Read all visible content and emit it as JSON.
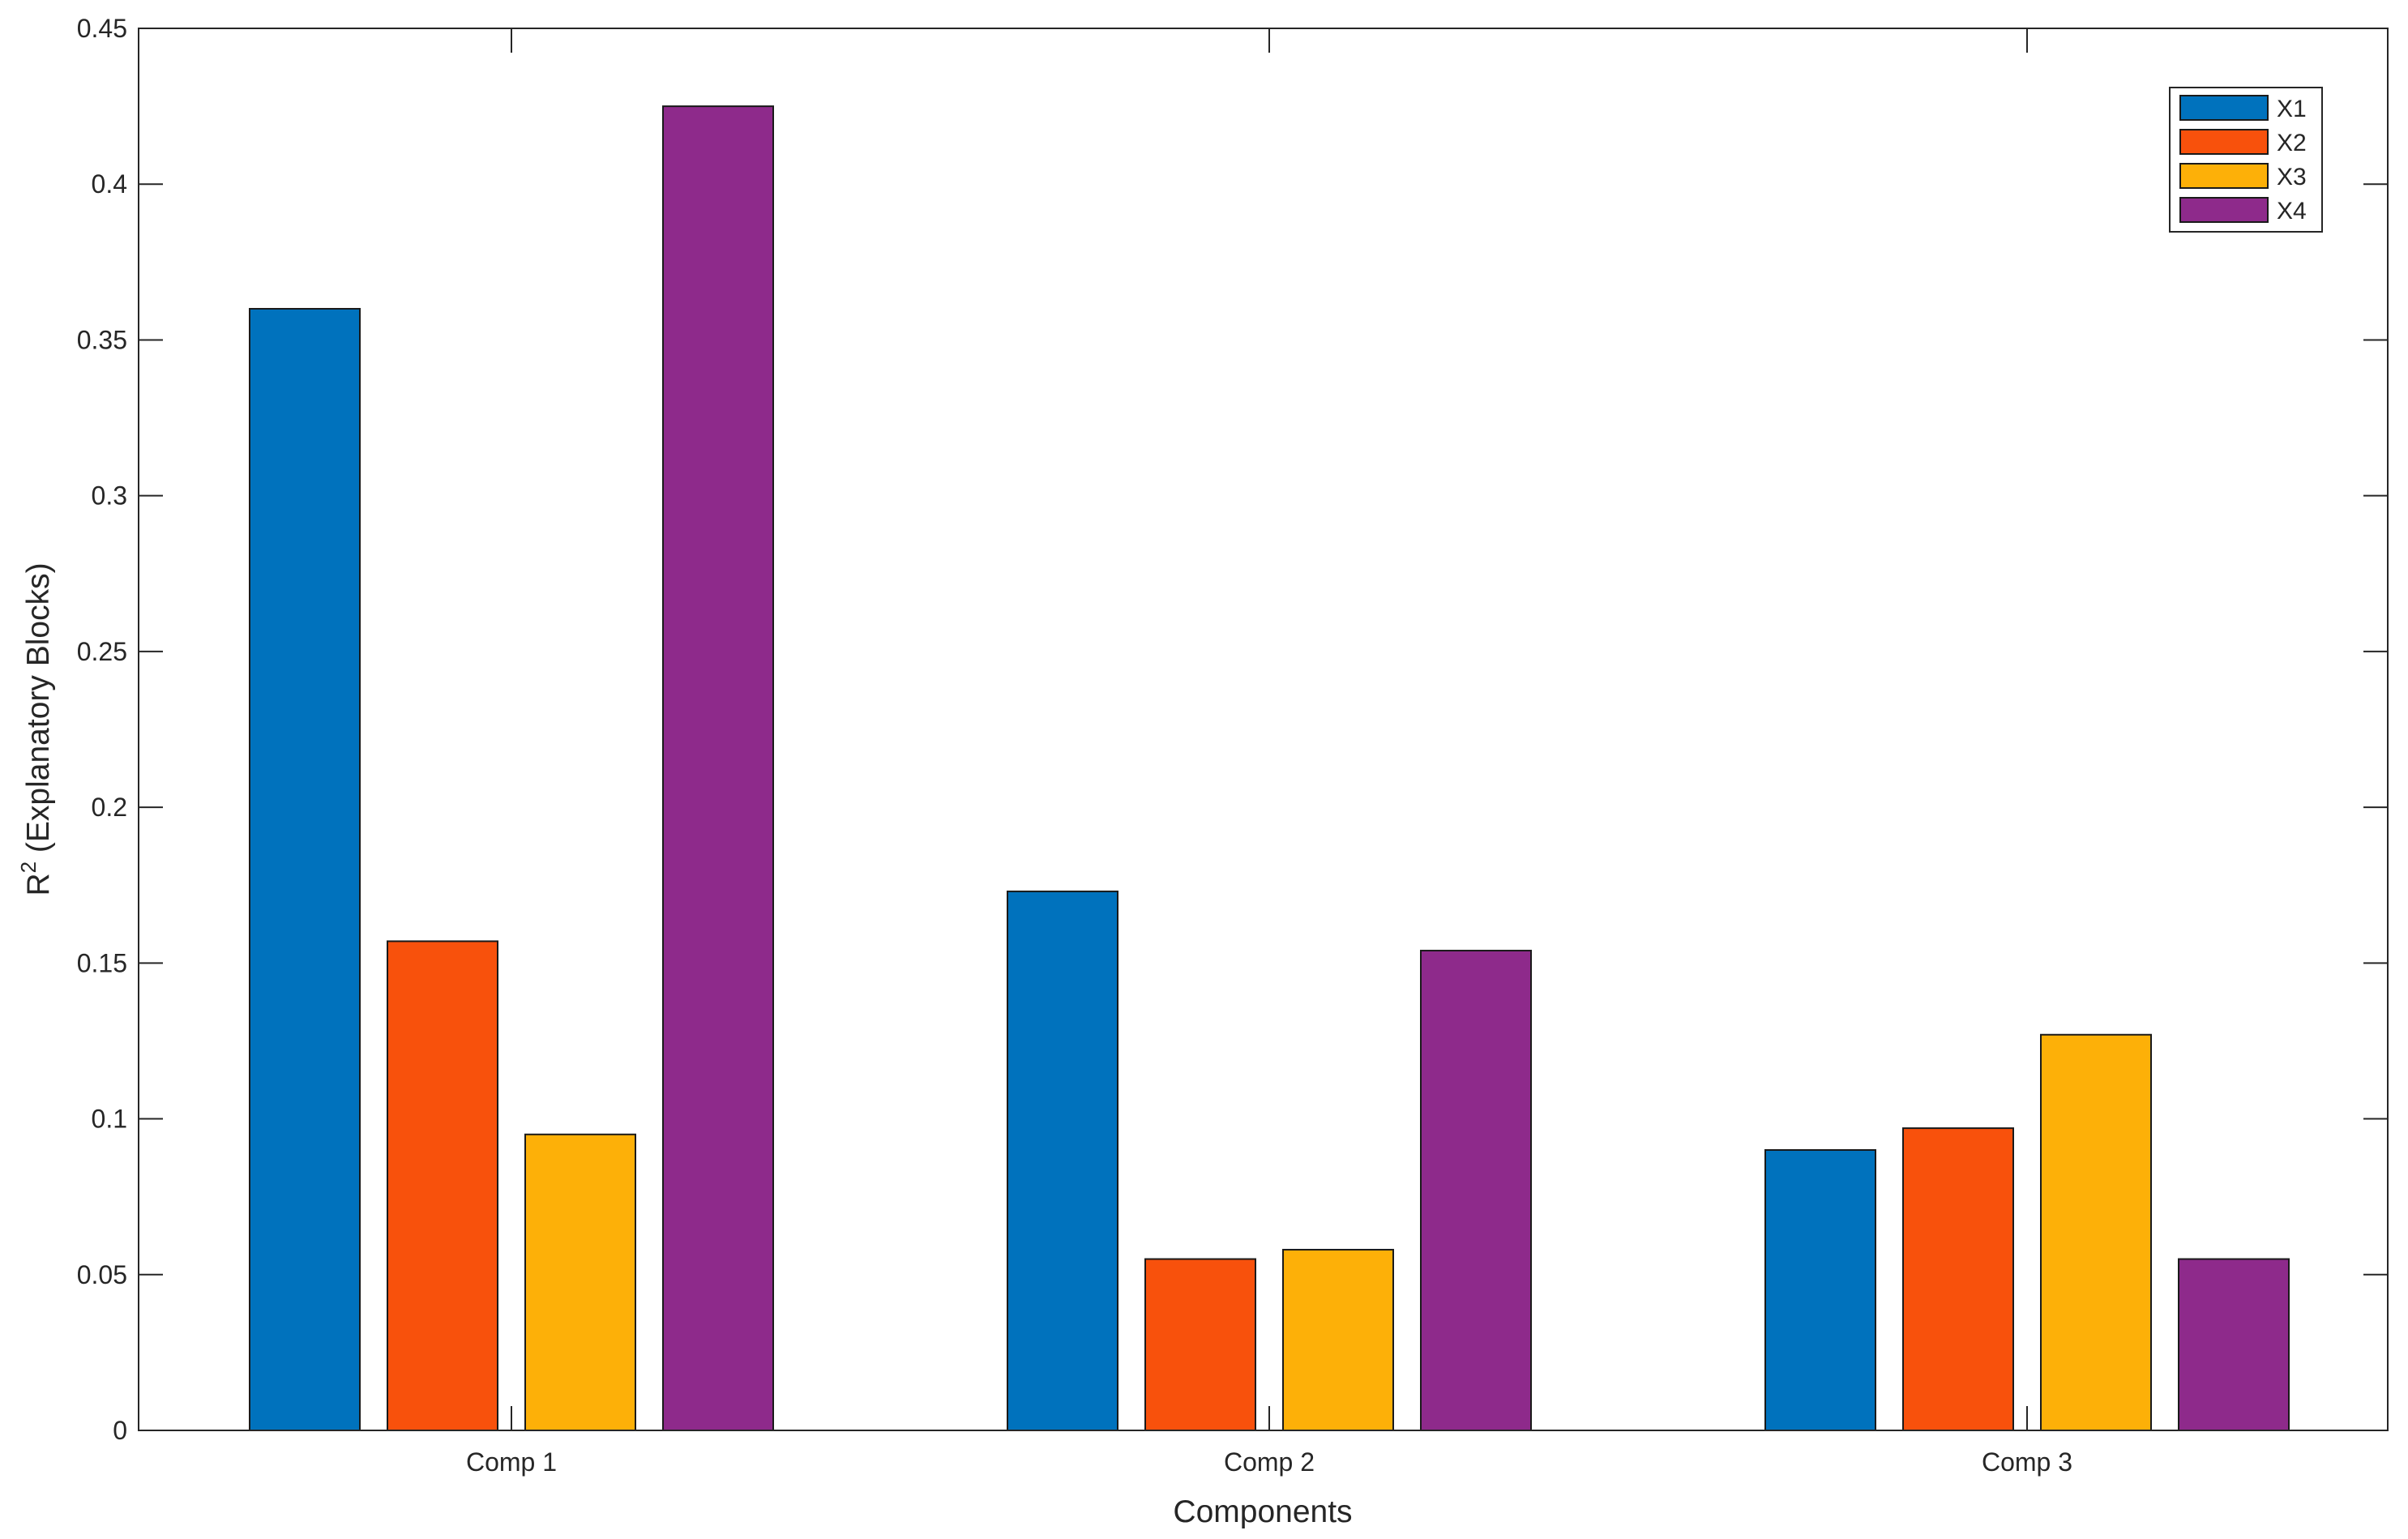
{
  "chart_data": {
    "type": "bar",
    "categories": [
      "Comp 1",
      "Comp 2",
      "Comp 3"
    ],
    "series": [
      {
        "name": "X1",
        "color": "#0072BD",
        "values": [
          0.36,
          0.173,
          0.09
        ]
      },
      {
        "name": "X2",
        "color": "#F8510C",
        "values": [
          0.157,
          0.055,
          0.097
        ]
      },
      {
        "name": "X3",
        "color": "#FDB008",
        "values": [
          0.095,
          0.058,
          0.127
        ]
      },
      {
        "name": "X4",
        "color": "#8E2A8B",
        "values": [
          0.425,
          0.154,
          0.055
        ]
      }
    ],
    "xlabel": "Components",
    "ylabel_main": "R",
    "ylabel_superscript": "2",
    "ylabel_rest": " (Explanatory Blocks)",
    "ylim": [
      0,
      0.45
    ],
    "yticks": [
      0,
      0.05,
      0.1,
      0.15,
      0.2,
      0.25,
      0.3,
      0.35,
      0.4,
      0.45
    ],
    "ytick_labels": [
      "0",
      "0.05",
      "0.1",
      "0.15",
      "0.2",
      "0.25",
      "0.3",
      "0.35",
      "0.4",
      "0.45"
    ],
    "legend_position": "top-right",
    "grid": false
  }
}
